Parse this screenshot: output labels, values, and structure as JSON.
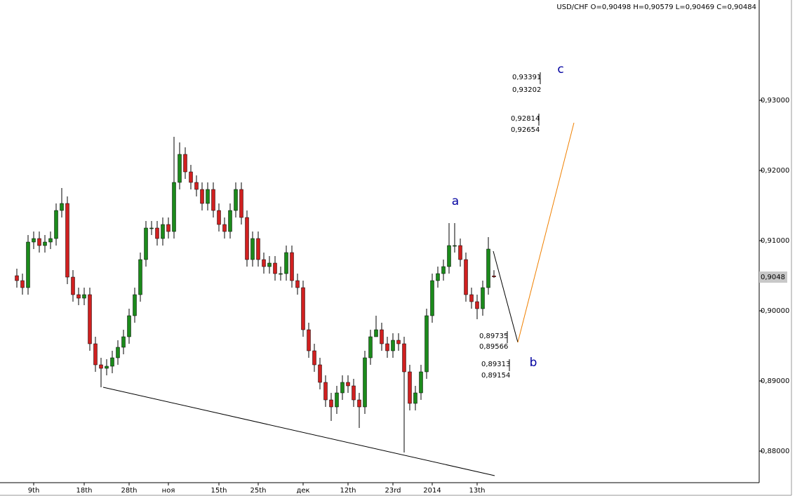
{
  "chart_data": {
    "type": "candlestick",
    "title": "USD/CHF O=0,90498 H=0,90579 L=0,90469 C=0,90484",
    "categories": [
      null,
      null,
      null,
      "9th",
      null,
      null,
      null,
      null,
      null,
      null,
      null,
      null,
      "18th",
      null,
      null,
      null,
      null,
      null,
      null,
      null,
      "28th",
      null,
      null,
      null,
      null,
      null,
      null,
      "ноя",
      null,
      null,
      null,
      null,
      null,
      null,
      null,
      null,
      "15th",
      null,
      null,
      null,
      null,
      null,
      null,
      "25th",
      null,
      null,
      null,
      null,
      null,
      null,
      null,
      "дек",
      null,
      null,
      null,
      null,
      null,
      null,
      null,
      "12th",
      null,
      null,
      null,
      null,
      null,
      null,
      null,
      "23rd",
      null,
      null,
      null,
      null,
      null,
      null,
      "2014",
      null,
      null,
      null,
      null,
      null,
      null,
      null,
      "13th",
      null,
      null,
      null
    ],
    "open": [
      0.905,
      0.9043,
      0.9033,
      0.9098,
      0.9103,
      0.9093,
      0.9098,
      0.9103,
      0.9143,
      0.9153,
      0.9048,
      0.9023,
      0.9018,
      0.9023,
      0.8953,
      0.8923,
      0.8918,
      0.8921,
      0.8933,
      0.8948,
      0.8963,
      0.8993,
      0.9023,
      0.9073,
      0.9118,
      0.9118,
      0.9103,
      0.9123,
      0.9113,
      0.9183,
      0.9223,
      0.9198,
      0.9183,
      0.9173,
      0.9153,
      0.9173,
      0.9143,
      0.9123,
      0.9113,
      0.9143,
      0.9173,
      0.9133,
      0.9073,
      0.9103,
      0.9073,
      0.9063,
      0.9068,
      0.9053,
      0.9053,
      0.9083,
      0.9043,
      0.9033,
      0.8973,
      0.8943,
      0.8923,
      0.8898,
      0.8873,
      0.8863,
      0.8883,
      0.8898,
      0.8893,
      0.8873,
      0.8863,
      0.8933,
      0.8963,
      0.8973,
      0.8953,
      0.8943,
      0.8958,
      0.8953,
      0.8913,
      0.8868,
      0.8883,
      0.8913,
      0.8993,
      0.9043,
      0.9053,
      0.9063,
      0.9093,
      0.9093,
      0.9073,
      0.9023,
      0.9013,
      0.9003,
      0.9033,
      0.90498
    ],
    "high": [
      0.906,
      0.9053,
      0.9108,
      0.9113,
      0.9113,
      0.9108,
      0.9113,
      0.9153,
      0.9175,
      0.9163,
      0.9058,
      0.9033,
      0.9033,
      0.9033,
      0.8963,
      0.8933,
      0.8931,
      0.8943,
      0.8958,
      0.8973,
      0.9003,
      0.9033,
      0.9083,
      0.9128,
      0.9128,
      0.9128,
      0.9133,
      0.9133,
      0.9248,
      0.924,
      0.9233,
      0.9208,
      0.9193,
      0.9183,
      0.9183,
      0.9183,
      0.9153,
      0.9133,
      0.9153,
      0.9183,
      0.9183,
      0.9143,
      0.9113,
      0.9113,
      0.9083,
      0.9078,
      0.9078,
      0.9063,
      0.9093,
      0.9093,
      0.9053,
      0.9043,
      0.8983,
      0.8953,
      0.8933,
      0.8908,
      0.8883,
      0.8893,
      0.8908,
      0.8908,
      0.8903,
      0.8883,
      0.8943,
      0.8973,
      0.8993,
      0.8983,
      0.8963,
      0.8968,
      0.8968,
      0.8963,
      0.8923,
      0.8893,
      0.8923,
      0.9003,
      0.9053,
      0.9063,
      0.9073,
      0.9125,
      0.9125,
      0.9103,
      0.9083,
      0.9033,
      0.9023,
      0.9043,
      0.9105,
      0.90579
    ],
    "low": [
      0.9033,
      0.9023,
      0.9023,
      0.9088,
      0.9083,
      0.9083,
      0.9088,
      0.9093,
      0.9133,
      0.9038,
      0.9013,
      0.9008,
      0.9008,
      0.8943,
      0.8913,
      0.8891,
      0.8908,
      0.8911,
      0.8923,
      0.8938,
      0.8953,
      0.8983,
      0.9013,
      0.9063,
      0.9108,
      0.9093,
      0.9093,
      0.9103,
      0.9103,
      0.9173,
      0.9188,
      0.9173,
      0.9163,
      0.9143,
      0.9143,
      0.9133,
      0.9113,
      0.9103,
      0.9103,
      0.9133,
      0.9123,
      0.9063,
      0.9063,
      0.9063,
      0.9053,
      0.9053,
      0.9043,
      0.9043,
      0.9043,
      0.9033,
      0.9023,
      0.8963,
      0.8933,
      0.8913,
      0.8888,
      0.8863,
      0.8843,
      0.8853,
      0.8873,
      0.8883,
      0.8863,
      0.8833,
      0.8853,
      0.8923,
      0.8963,
      0.8943,
      0.8933,
      0.8933,
      0.8943,
      0.8798,
      0.8858,
      0.8858,
      0.8873,
      0.8903,
      0.8983,
      0.9033,
      0.9043,
      0.9053,
      0.9083,
      0.9063,
      0.9013,
      0.9003,
      0.8988,
      0.8993,
      0.9023,
      0.90469
    ],
    "close": [
      0.9043,
      0.9033,
      0.9098,
      0.9103,
      0.9093,
      0.9098,
      0.9103,
      0.9143,
      0.9153,
      0.9048,
      0.9023,
      0.9018,
      0.9023,
      0.8953,
      0.8923,
      0.8918,
      0.8921,
      0.8933,
      0.8948,
      0.8963,
      0.8993,
      0.9023,
      0.9073,
      0.9118,
      0.9118,
      0.9103,
      0.9123,
      0.9113,
      0.9183,
      0.9223,
      0.9198,
      0.9183,
      0.9173,
      0.9153,
      0.9173,
      0.9143,
      0.9123,
      0.9113,
      0.9143,
      0.9173,
      0.9133,
      0.9073,
      0.9103,
      0.9073,
      0.9063,
      0.9068,
      0.9053,
      0.9053,
      0.9083,
      0.9043,
      0.9033,
      0.8973,
      0.8943,
      0.8923,
      0.8898,
      0.8873,
      0.8863,
      0.8883,
      0.8898,
      0.8893,
      0.8873,
      0.8863,
      0.8933,
      0.8963,
      0.8973,
      0.8953,
      0.8943,
      0.8958,
      0.8953,
      0.8913,
      0.8868,
      0.8883,
      0.8913,
      0.8993,
      0.9043,
      0.9053,
      0.9063,
      0.9093,
      0.9093,
      0.9073,
      0.9023,
      0.9013,
      0.9003,
      0.9033,
      0.9088,
      0.90484
    ],
    "up_color": "#1b8a1b",
    "down_color": "#d02020",
    "ylim": [
      0.8755,
      0.9443
    ],
    "yticks": [
      {
        "value": 0.88,
        "label": "0,88000"
      },
      {
        "value": 0.89,
        "label": "0,89000"
      },
      {
        "value": 0.9,
        "label": "0,90000"
      },
      {
        "value": 0.91,
        "label": "0,91000"
      },
      {
        "value": 0.92,
        "label": "0,92000"
      },
      {
        "value": 0.93,
        "label": "0,93000"
      }
    ],
    "last_price": {
      "value": 0.9048,
      "label": "0,9048"
    },
    "annotations": [
      "a",
      "b",
      "c",
      "0,93391",
      "0,93202",
      "0,92814",
      "0,92654",
      "0,89735",
      "0,89566",
      "0,89313",
      "0,89154"
    ]
  }
}
